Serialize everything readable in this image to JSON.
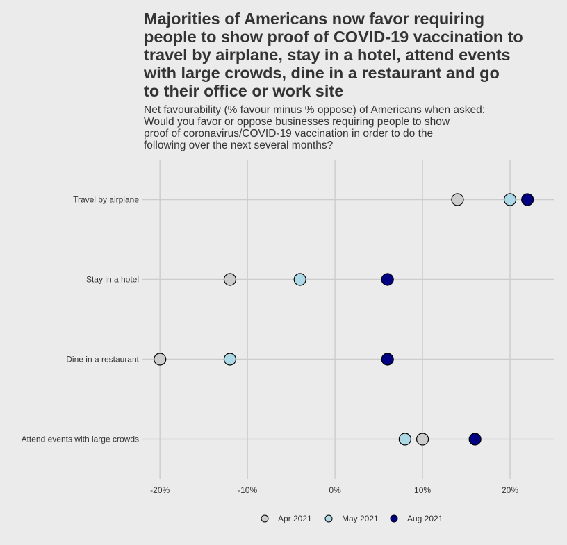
{
  "chart_data": {
    "type": "scatter",
    "title": "Majorities of Americans now favor requiring\npeople to show proof of COVID-19 vaccination to\ntravel by airplane, stay in a hotel, attend events\nwith large crowds, dine in a restaurant and go\nto their office or work site",
    "subtitle": "Net favourability (% favour minus % oppose) of Americans when asked:\nWould you favor or oppose businesses requiring people to show\nproof of coronavirus/COVID-19 vaccination in order to do the\nfollowing over the next several months?",
    "categories": [
      "Travel by airplane",
      "Stay in a hotel",
      "Dine in a restaurant",
      "Attend events with large crowds"
    ],
    "x_ticks": [
      -20,
      -10,
      0,
      10,
      20
    ],
    "x_tick_labels": [
      "-20%",
      "-10%",
      "0%",
      "10%",
      "20%"
    ],
    "xlim": [
      -22,
      25
    ],
    "grid": true,
    "legend_position": "bottom",
    "series": [
      {
        "name": "Apr 2021",
        "color": "#cccccc",
        "values": [
          14,
          -12,
          -20,
          10
        ]
      },
      {
        "name": "May 2021",
        "color": "#add8e6",
        "values": [
          20,
          -4,
          -12,
          8
        ]
      },
      {
        "name": "Aug 2021",
        "color": "#000080",
        "values": [
          22,
          6,
          6,
          16
        ]
      }
    ]
  }
}
